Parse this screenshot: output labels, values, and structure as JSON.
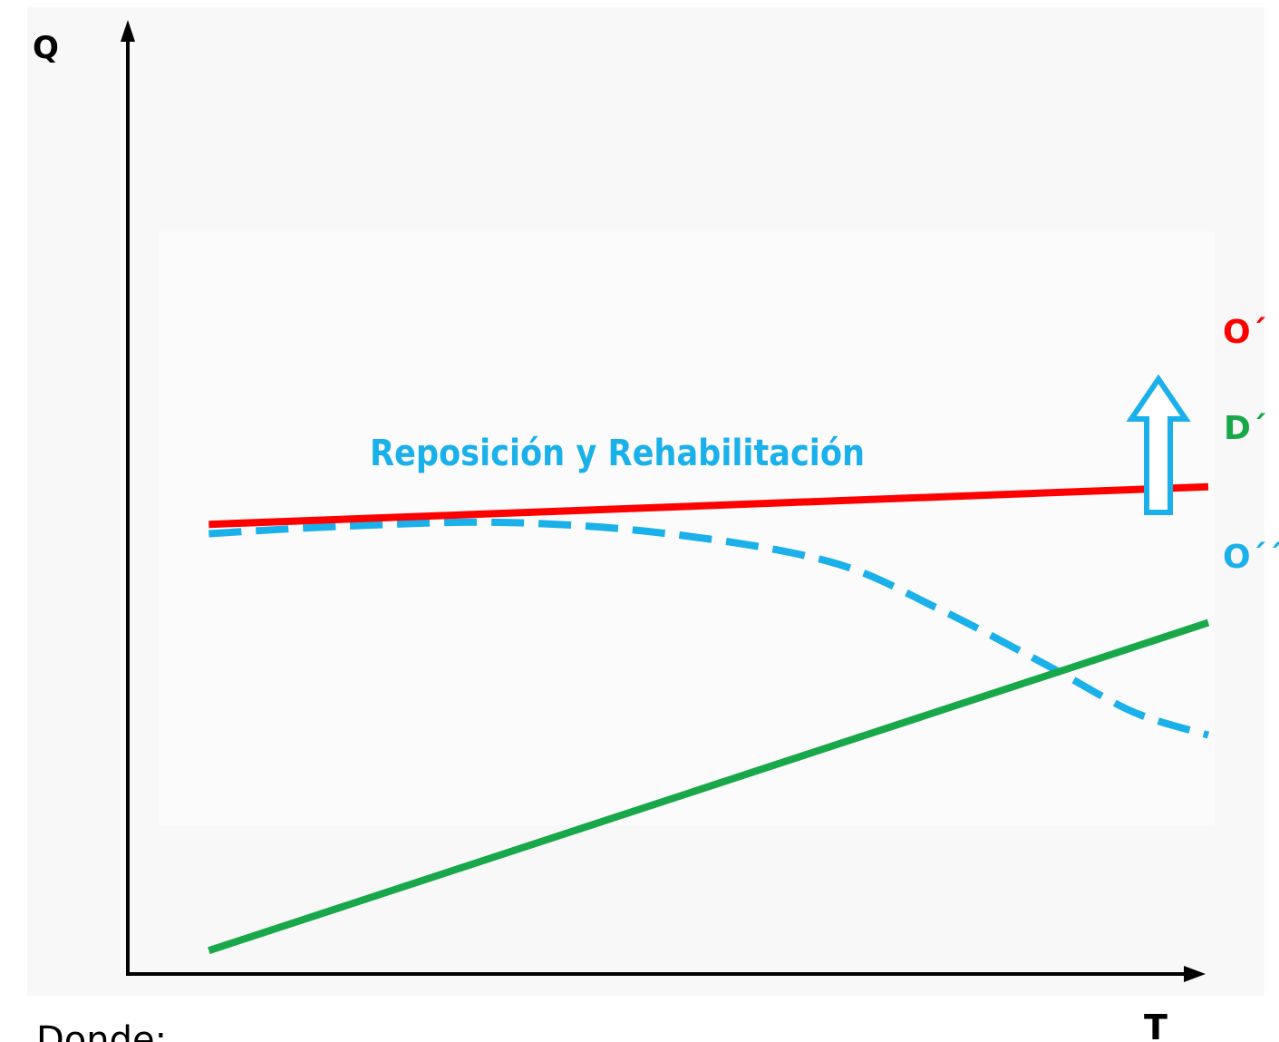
{
  "chart_data": {
    "type": "line",
    "title": "",
    "xlabel": "T",
    "ylabel": "Q",
    "xlim": [
      0,
      10
    ],
    "ylim": [
      0,
      10
    ],
    "grid": false,
    "legend": "none",
    "series": [
      {
        "name": "O´",
        "color": "#ff0000",
        "style": "solid",
        "x": [
          0.75,
          10.0
        ],
        "y": [
          4.8,
          5.2
        ]
      },
      {
        "name": "D´",
        "color": "#18a84a",
        "style": "solid",
        "x": [
          0.75,
          10.0
        ],
        "y": [
          0.25,
          3.75
        ]
      },
      {
        "name": "O´´",
        "color": "#1ab0ea",
        "style": "dashed",
        "x": [
          0.75,
          2.0,
          3.5,
          5.0,
          6.5,
          7.5,
          8.5,
          9.3,
          10.0
        ],
        "y": [
          4.7,
          4.78,
          4.82,
          4.7,
          4.4,
          3.9,
          3.3,
          2.8,
          2.55
        ]
      }
    ],
    "annotations": [
      {
        "text": "Reposición y Rehabilitación",
        "color": "#1ab0ea"
      },
      {
        "type": "up-arrow",
        "color": "#1ab0ea",
        "x": 9.3,
        "y_from": 2.95,
        "y_to": 5.0
      }
    ]
  },
  "labels": {
    "y_axis": "Q",
    "x_axis": "T",
    "o_prime": "O´",
    "d_prime": "D´",
    "o_double_prime": "O´´",
    "annotation": "Reposición y Rehabilitación",
    "footer": "Donde:"
  },
  "colors": {
    "red": "#ff0000",
    "green": "#18a84a",
    "blue": "#1ab0ea",
    "axis": "#000000",
    "panel": "#f8f8f8"
  }
}
